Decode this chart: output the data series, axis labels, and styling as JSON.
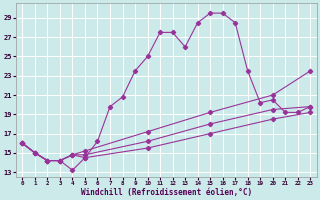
{
  "xlabel": "Windchill (Refroidissement éolien,°C)",
  "background_color": "#cceaea",
  "grid_color": "#ffffff",
  "line_color": "#993399",
  "xlim": [
    -0.5,
    23.5
  ],
  "ylim": [
    12.5,
    30.5
  ],
  "yticks": [
    13,
    15,
    17,
    19,
    21,
    23,
    25,
    27,
    29
  ],
  "xticks": [
    0,
    1,
    2,
    3,
    4,
    5,
    6,
    7,
    8,
    9,
    10,
    11,
    12,
    13,
    14,
    15,
    16,
    17,
    18,
    19,
    20,
    21,
    22,
    23
  ],
  "series1": [
    [
      0,
      16.0
    ],
    [
      1,
      15.0
    ],
    [
      2,
      14.2
    ],
    [
      3,
      14.2
    ],
    [
      4,
      13.2
    ],
    [
      5,
      14.5
    ],
    [
      6,
      16.2
    ],
    [
      7,
      19.8
    ],
    [
      8,
      20.8
    ],
    [
      9,
      23.5
    ],
    [
      10,
      25.0
    ],
    [
      11,
      27.5
    ],
    [
      12,
      27.5
    ],
    [
      13,
      26.0
    ],
    [
      14,
      28.5
    ],
    [
      15,
      29.5
    ],
    [
      16,
      29.5
    ],
    [
      17,
      28.5
    ],
    [
      18,
      23.5
    ],
    [
      19,
      20.2
    ],
    [
      20,
      20.5
    ],
    [
      21,
      19.2
    ],
    [
      22,
      19.2
    ],
    [
      23,
      19.8
    ]
  ],
  "series2": [
    [
      0,
      16.0
    ],
    [
      1,
      15.0
    ],
    [
      2,
      14.2
    ],
    [
      3,
      14.2
    ],
    [
      4,
      14.8
    ],
    [
      5,
      15.2
    ],
    [
      10,
      17.2
    ],
    [
      15,
      19.2
    ],
    [
      20,
      21.0
    ],
    [
      23,
      23.5
    ]
  ],
  "series3": [
    [
      0,
      16.0
    ],
    [
      1,
      15.0
    ],
    [
      2,
      14.2
    ],
    [
      3,
      14.2
    ],
    [
      4,
      14.8
    ],
    [
      5,
      14.8
    ],
    [
      10,
      16.2
    ],
    [
      15,
      18.0
    ],
    [
      20,
      19.5
    ],
    [
      23,
      19.8
    ]
  ],
  "series4": [
    [
      0,
      16.0
    ],
    [
      1,
      15.0
    ],
    [
      2,
      14.2
    ],
    [
      3,
      14.2
    ],
    [
      4,
      14.8
    ],
    [
      5,
      14.5
    ],
    [
      10,
      15.5
    ],
    [
      15,
      17.0
    ],
    [
      20,
      18.5
    ],
    [
      23,
      19.2
    ]
  ]
}
